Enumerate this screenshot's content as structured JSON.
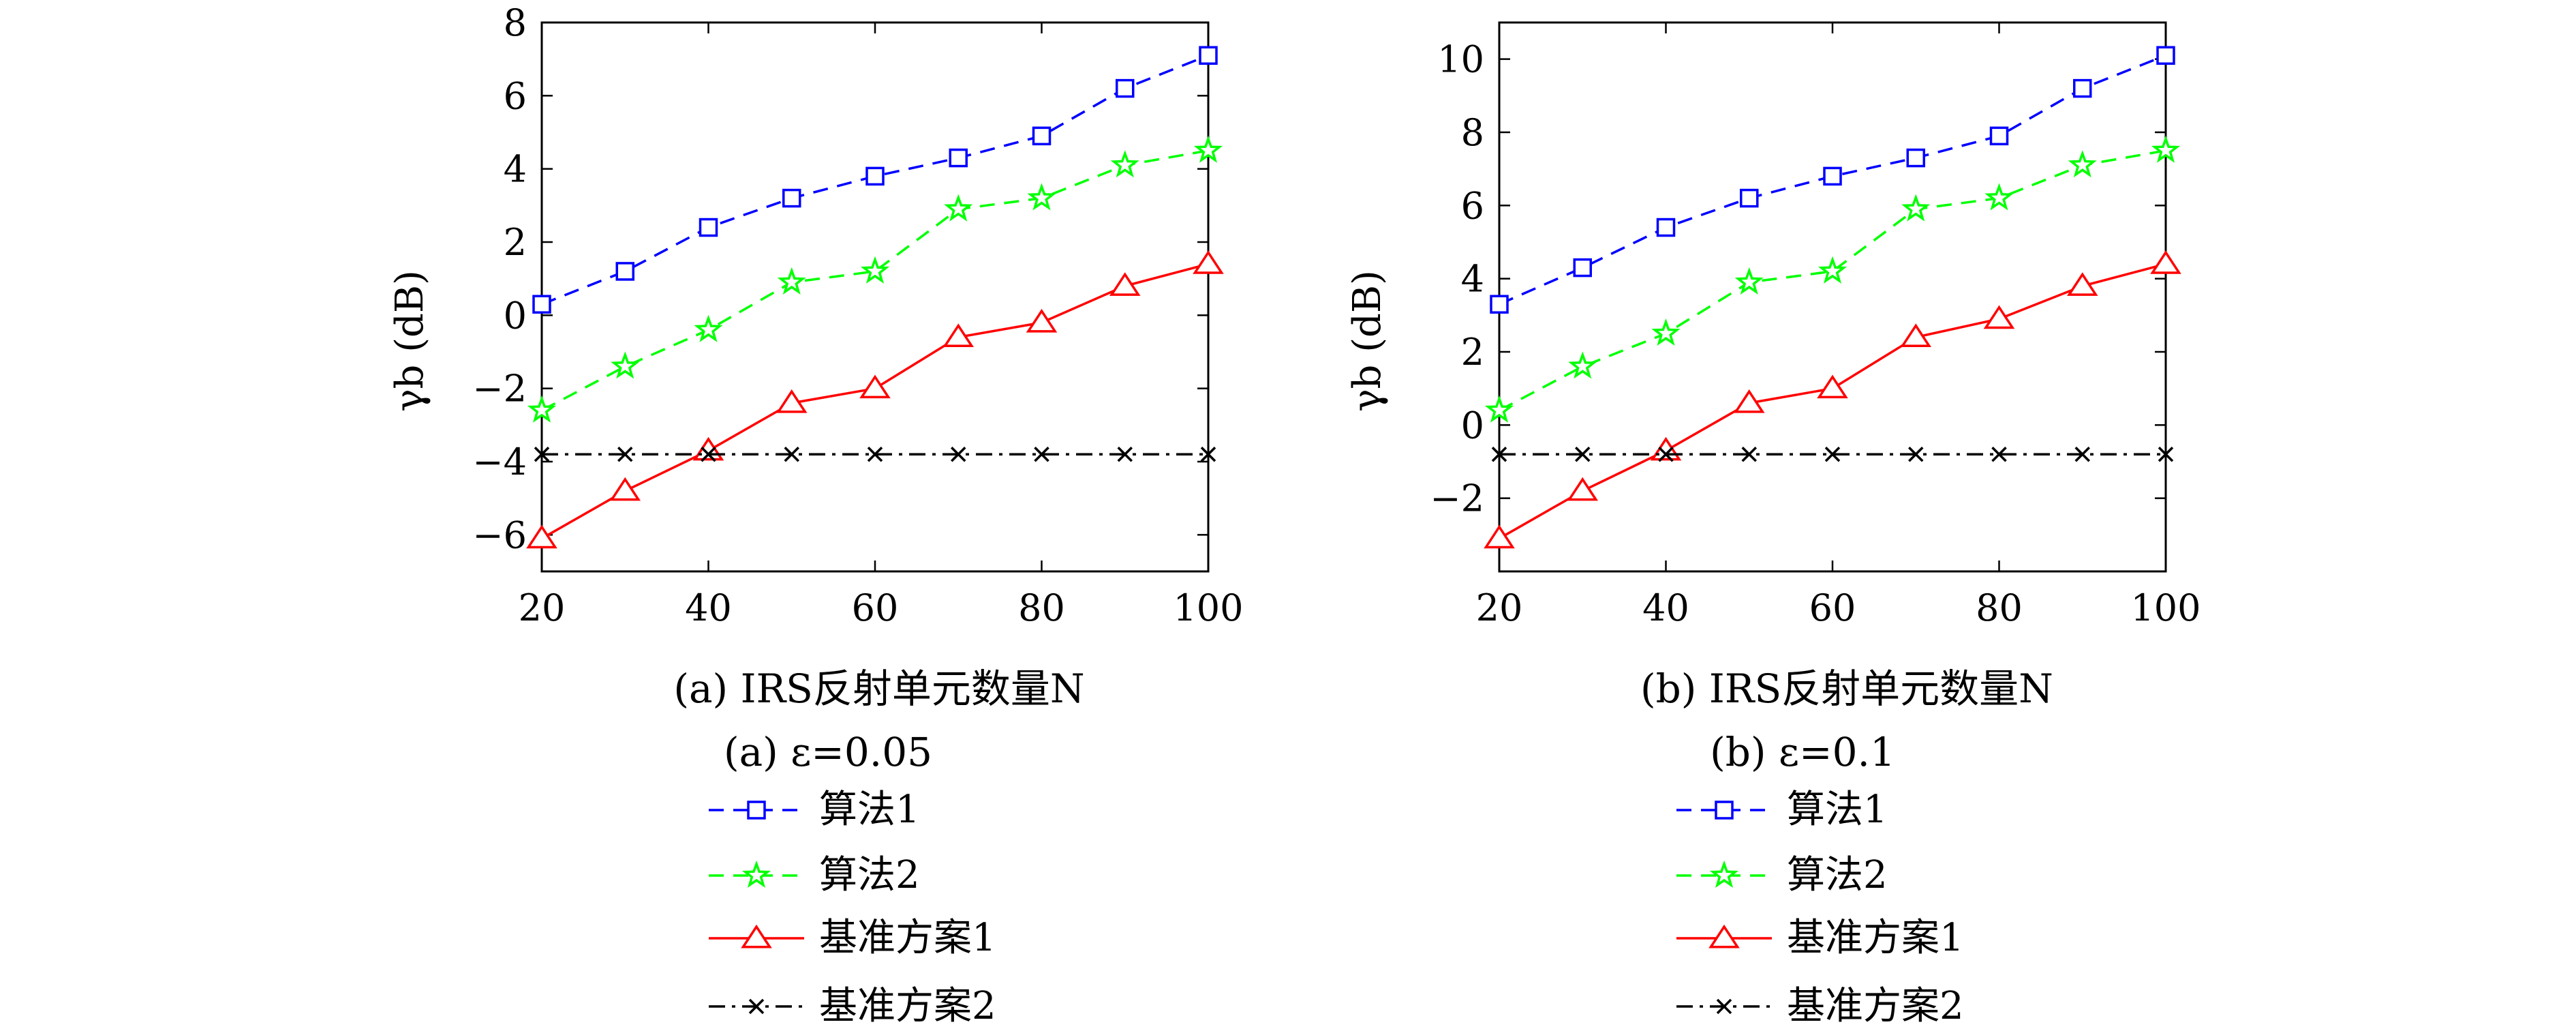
{
  "chart_data": [
    {
      "type": "line",
      "x": [
        20,
        30,
        40,
        50,
        60,
        70,
        80,
        90,
        100
      ],
      "xlim": [
        20,
        100
      ],
      "ylim": [
        -7,
        8
      ],
      "xticks": [
        20,
        40,
        60,
        80,
        100
      ],
      "yticks": [
        -6,
        -4,
        -2,
        0,
        2,
        4,
        6,
        8
      ],
      "ytick_labels": [
        "−6",
        "−4",
        "−2",
        "0",
        "2",
        "4",
        "6",
        "8"
      ],
      "xlabel": "(a) IRS反射单元数量N",
      "ylabel": "γb (dB)",
      "caption": "(a) ε=0.05",
      "legend_position": "below",
      "series": [
        {
          "name": "算法1",
          "color": "#0000ff",
          "marker": "square",
          "dash": "dashed",
          "values": [
            0.3,
            1.2,
            2.4,
            3.2,
            3.8,
            4.3,
            4.9,
            6.2,
            7.1
          ]
        },
        {
          "name": "算法2",
          "color": "#00ff00",
          "marker": "star",
          "dash": "dashed",
          "values": [
            -2.6,
            -1.4,
            -0.4,
            0.9,
            1.2,
            2.9,
            3.2,
            4.1,
            4.5
          ]
        },
        {
          "name": "基准方案1",
          "color": "#ff0000",
          "marker": "triangle",
          "dash": "solid",
          "values": [
            -6.1,
            -4.8,
            -3.7,
            -2.4,
            -2.0,
            -0.6,
            -0.2,
            0.8,
            1.4
          ]
        },
        {
          "name": "基准方案2",
          "color": "#000000",
          "marker": "x",
          "dash": "dashdot",
          "values": [
            -3.8,
            -3.8,
            -3.8,
            -3.8,
            -3.8,
            -3.8,
            -3.8,
            -3.8,
            -3.8
          ]
        }
      ]
    },
    {
      "type": "line",
      "x": [
        20,
        30,
        40,
        50,
        60,
        70,
        80,
        90,
        100
      ],
      "xlim": [
        20,
        100
      ],
      "ylim": [
        -4,
        11
      ],
      "xticks": [
        20,
        40,
        60,
        80,
        100
      ],
      "yticks": [
        -2,
        0,
        2,
        4,
        6,
        8,
        10
      ],
      "ytick_labels": [
        "−2",
        "0",
        "2",
        "4",
        "6",
        "8",
        "10"
      ],
      "xlabel": "(b) IRS反射单元数量N",
      "ylabel": "γb (dB)",
      "caption": "(b) ε=0.1",
      "legend_position": "below",
      "series": [
        {
          "name": "算法1",
          "color": "#0000ff",
          "marker": "square",
          "dash": "dashed",
          "values": [
            3.3,
            4.3,
            5.4,
            6.2,
            6.8,
            7.3,
            7.9,
            9.2,
            10.1
          ]
        },
        {
          "name": "算法2",
          "color": "#00ff00",
          "marker": "star",
          "dash": "dashed",
          "values": [
            0.4,
            1.6,
            2.5,
            3.9,
            4.2,
            5.9,
            6.2,
            7.1,
            7.5
          ]
        },
        {
          "name": "基准方案1",
          "color": "#ff0000",
          "marker": "triangle",
          "dash": "solid",
          "values": [
            -3.1,
            -1.8,
            -0.7,
            0.6,
            1.0,
            2.4,
            2.9,
            3.8,
            4.4
          ]
        },
        {
          "name": "基准方案2",
          "color": "#000000",
          "marker": "x",
          "dash": "dashdot",
          "values": [
            -0.8,
            -0.8,
            -0.8,
            -0.8,
            -0.8,
            -0.8,
            -0.8,
            -0.8,
            -0.8
          ]
        }
      ]
    }
  ]
}
